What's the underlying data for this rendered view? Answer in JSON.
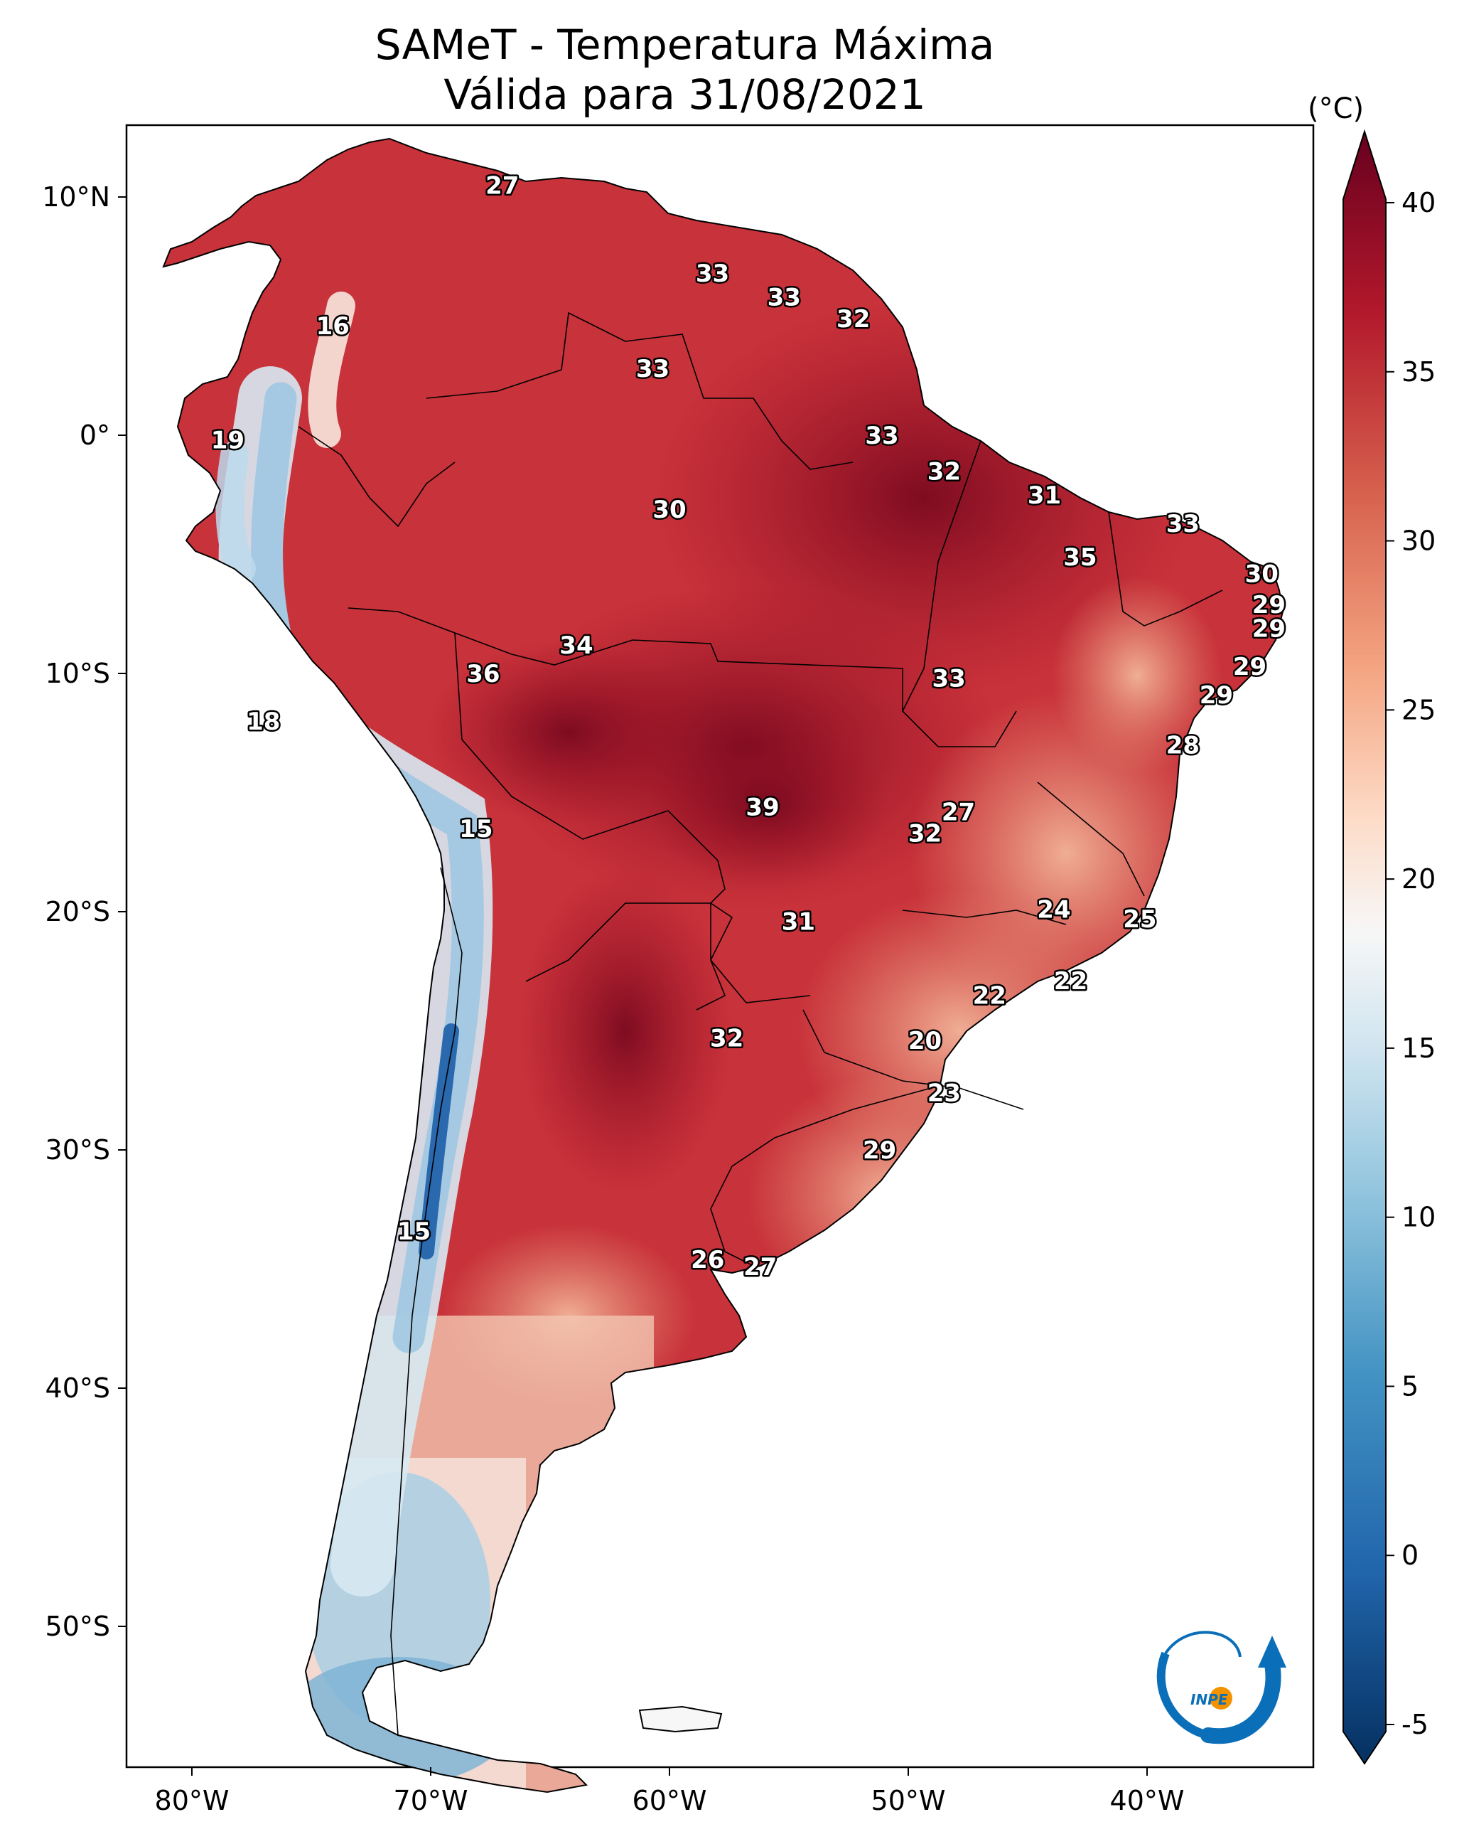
{
  "title": {
    "line1": "SAMeT - Temperatura Máxima",
    "line2": "Válida para 31/08/2021"
  },
  "colorbar": {
    "unit": "(°C)",
    "min": -5,
    "max": 40,
    "ticks": [
      "40",
      "35",
      "30",
      "25",
      "20",
      "15",
      "10",
      "5",
      "0",
      "-5"
    ],
    "tick_values": [
      40,
      35,
      30,
      25,
      20,
      15,
      10,
      5,
      0,
      -5
    ],
    "stops": [
      "#053061",
      "#2166ac",
      "#4393c3",
      "#92c5de",
      "#d1e5f0",
      "#f7f7f7",
      "#fddbc7",
      "#f4a582",
      "#d6604d",
      "#b2182b",
      "#67001f"
    ]
  },
  "axes": {
    "lon_labels": [
      "80°W",
      "70°W",
      "60°W",
      "50°W",
      "40°W"
    ],
    "lon_values": [
      -80,
      -70,
      -60,
      -50,
      -40
    ],
    "lat_labels": [
      "10°N",
      "0°",
      "10°S",
      "20°S",
      "30°S",
      "40°S",
      "50°S"
    ],
    "lat_values": [
      10,
      0,
      -10,
      -20,
      -30,
      -40,
      -50
    ],
    "lon_range": [
      -83,
      -33
    ],
    "lat_range": [
      13,
      -56
    ]
  },
  "logo": {
    "text": "INPE",
    "colors": {
      "blue": "#0a6fb8",
      "orange": "#f39200"
    }
  },
  "capital_labels": [
    {
      "value": "27",
      "lon": -67.0,
      "lat": 10.5
    },
    {
      "value": "16",
      "lon": -74.1,
      "lat": 4.6
    },
    {
      "value": "19",
      "lon": -78.5,
      "lat": -0.2
    },
    {
      "value": "33",
      "lon": -58.2,
      "lat": 6.8
    },
    {
      "value": "33",
      "lon": -55.2,
      "lat": 5.8
    },
    {
      "value": "32",
      "lon": -52.3,
      "lat": 4.9
    },
    {
      "value": "33",
      "lon": -60.7,
      "lat": 2.8
    },
    {
      "value": "33",
      "lon": -51.1,
      "lat": 0.0
    },
    {
      "value": "32",
      "lon": -48.5,
      "lat": -1.5
    },
    {
      "value": "31",
      "lon": -44.3,
      "lat": -2.5
    },
    {
      "value": "30",
      "lon": -60.0,
      "lat": -3.1
    },
    {
      "value": "33",
      "lon": -38.5,
      "lat": -3.7
    },
    {
      "value": "35",
      "lon": -42.8,
      "lat": -5.1
    },
    {
      "value": "30",
      "lon": -35.2,
      "lat": -5.8
    },
    {
      "value": "29",
      "lon": -34.9,
      "lat": -7.1
    },
    {
      "value": "29",
      "lon": -34.9,
      "lat": -8.1
    },
    {
      "value": "34",
      "lon": -63.9,
      "lat": -8.8
    },
    {
      "value": "36",
      "lon": -67.8,
      "lat": -10.0
    },
    {
      "value": "29",
      "lon": -35.7,
      "lat": -9.7
    },
    {
      "value": "33",
      "lon": -48.3,
      "lat": -10.2
    },
    {
      "value": "29",
      "lon": -37.1,
      "lat": -10.9
    },
    {
      "value": "18",
      "lon": -77.0,
      "lat": -12.0
    },
    {
      "value": "28",
      "lon": -38.5,
      "lat": -13.0
    },
    {
      "value": "39",
      "lon": -56.1,
      "lat": -15.6
    },
    {
      "value": "27",
      "lon": -47.9,
      "lat": -15.8
    },
    {
      "value": "32",
      "lon": -49.3,
      "lat": -16.7
    },
    {
      "value": "15",
      "lon": -68.1,
      "lat": -16.5
    },
    {
      "value": "24",
      "lon": -43.9,
      "lat": -19.9
    },
    {
      "value": "25",
      "lon": -40.3,
      "lat": -20.3
    },
    {
      "value": "31",
      "lon": -54.6,
      "lat": -20.4
    },
    {
      "value": "22",
      "lon": -46.6,
      "lat": -23.5
    },
    {
      "value": "22",
      "lon": -43.2,
      "lat": -22.9
    },
    {
      "value": "20",
      "lon": -49.3,
      "lat": -25.4
    },
    {
      "value": "32",
      "lon": -57.6,
      "lat": -25.3
    },
    {
      "value": "23",
      "lon": -48.5,
      "lat": -27.6
    },
    {
      "value": "29",
      "lon": -51.2,
      "lat": -30.0
    },
    {
      "value": "15",
      "lon": -70.7,
      "lat": -33.4
    },
    {
      "value": "26",
      "lon": -58.4,
      "lat": -34.6
    },
    {
      "value": "27",
      "lon": -56.2,
      "lat": -34.9
    }
  ]
}
